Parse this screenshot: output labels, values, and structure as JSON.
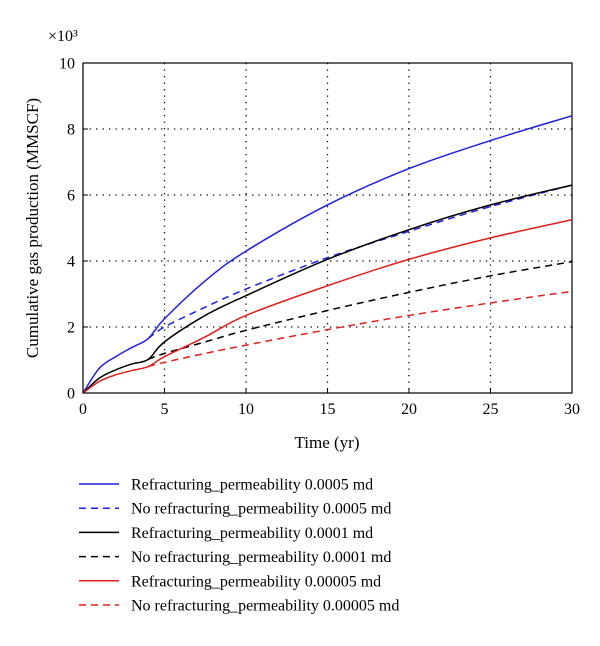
{
  "chart_data": {
    "type": "line",
    "title": "",
    "xlabel": "Time (yr)",
    "ylabel": "Cumulative gas production (MMSCF)",
    "y_multiplier_label": "×10³",
    "xlim": [
      0,
      30
    ],
    "ylim": [
      0,
      10
    ],
    "x_ticks": [
      "0",
      "5",
      "10",
      "15",
      "20",
      "25",
      "30"
    ],
    "y_ticks": [
      "0",
      "2",
      "4",
      "6",
      "8",
      "10"
    ],
    "grid": true,
    "grid_style": "dotted",
    "legend_position": "below",
    "series": [
      {
        "name": "Refracturing_permeability 0.0005 md",
        "color": "#1f1fdf",
        "dash": "solid",
        "x": [
          0,
          1,
          2,
          3,
          4,
          5,
          7.5,
          10,
          15,
          20,
          25,
          30
        ],
        "y": [
          0,
          0.75,
          1.1,
          1.38,
          1.65,
          2.25,
          3.4,
          4.3,
          5.7,
          6.8,
          7.65,
          8.4
        ]
      },
      {
        "name": "No refracturing_permeability 0.0005 md",
        "color": "#1f1fdf",
        "dash": "dashed",
        "x": [
          4,
          5,
          7.5,
          10,
          15,
          20,
          25,
          30
        ],
        "y": [
          1.65,
          2.0,
          2.6,
          3.15,
          4.1,
          4.9,
          5.65,
          6.3
        ]
      },
      {
        "name": "Refracturing_permeability 0.0001 md",
        "color": "#000000",
        "dash": "solid",
        "x": [
          0,
          1,
          2,
          3,
          4,
          5,
          7.5,
          10,
          15,
          20,
          25,
          30
        ],
        "y": [
          0,
          0.45,
          0.7,
          0.88,
          1.02,
          1.55,
          2.35,
          2.95,
          4.05,
          4.95,
          5.7,
          6.3
        ]
      },
      {
        "name": "No refracturing_permeability 0.0001 md",
        "color": "#000000",
        "dash": "dashed",
        "x": [
          4,
          5,
          7.5,
          10,
          15,
          20,
          25,
          30
        ],
        "y": [
          1.02,
          1.2,
          1.55,
          1.9,
          2.5,
          3.05,
          3.55,
          3.98
        ]
      },
      {
        "name": "Refracturing_permeability 0.00005 md",
        "color": "#e01f1f",
        "dash": "solid",
        "x": [
          0,
          1,
          2,
          3,
          4,
          5,
          7.5,
          10,
          15,
          20,
          25,
          30
        ],
        "y": [
          0,
          0.35,
          0.55,
          0.68,
          0.8,
          1.1,
          1.7,
          2.35,
          3.25,
          4.05,
          4.7,
          5.25
        ]
      },
      {
        "name": "No refracturing_permeability 0.00005 md",
        "color": "#e01f1f",
        "dash": "dashed",
        "x": [
          4,
          5,
          7.5,
          10,
          15,
          20,
          25,
          30
        ],
        "y": [
          0.8,
          0.93,
          1.2,
          1.45,
          1.92,
          2.35,
          2.73,
          3.08
        ]
      }
    ]
  }
}
